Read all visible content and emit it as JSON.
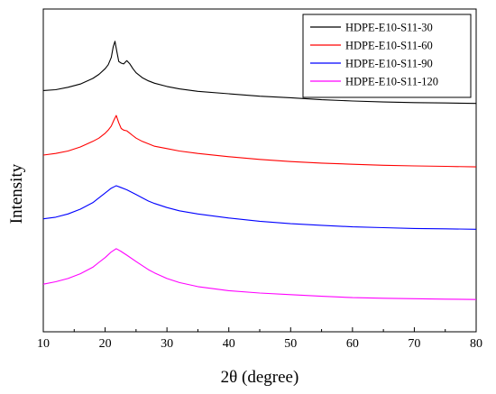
{
  "chart_data": {
    "type": "line",
    "title": "",
    "xlabel": "2θ (degree)",
    "ylabel": "Intensity",
    "xlim": [
      10,
      80
    ],
    "xticks": [
      10,
      20,
      30,
      40,
      50,
      60,
      70,
      80
    ],
    "y_tick_labels_shown": false,
    "y_units": "arbitrary, curves vertically offset",
    "grid": false,
    "legend_position": "top-right",
    "series": [
      {
        "name": "HDPE-E10-S11-30",
        "color": "#000000",
        "x": [
          10,
          12,
          14,
          16,
          18,
          19,
          20,
          20.5,
          21,
          21.3,
          21.6,
          21.9,
          22.2,
          22.6,
          23,
          23.5,
          24,
          24.5,
          25,
          26,
          27,
          28,
          30,
          32,
          35,
          40,
          45,
          50,
          55,
          60,
          65,
          70,
          75,
          80
        ],
        "y": [
          7.95,
          8.0,
          8.15,
          8.35,
          8.7,
          8.95,
          9.3,
          9.55,
          10.0,
          10.65,
          11.0,
          10.35,
          9.75,
          9.65,
          9.6,
          9.8,
          9.6,
          9.3,
          9.05,
          8.75,
          8.55,
          8.4,
          8.2,
          8.05,
          7.9,
          7.75,
          7.6,
          7.5,
          7.38,
          7.3,
          7.24,
          7.2,
          7.18,
          7.15
        ]
      },
      {
        "name": "HDPE-E10-S11-60",
        "color": "#ff0000",
        "x": [
          10,
          12,
          14,
          16,
          18,
          19,
          20,
          20.5,
          21,
          21.4,
          21.8,
          22.2,
          22.6,
          23,
          23.5,
          24,
          24.5,
          25,
          26,
          27,
          28,
          30,
          32,
          35,
          40,
          45,
          50,
          55,
          60,
          65,
          70,
          75,
          80
        ],
        "y": [
          3.95,
          4.05,
          4.2,
          4.45,
          4.8,
          5.0,
          5.3,
          5.5,
          5.75,
          6.1,
          6.4,
          5.95,
          5.6,
          5.5,
          5.45,
          5.3,
          5.15,
          5.0,
          4.8,
          4.65,
          4.5,
          4.35,
          4.2,
          4.05,
          3.85,
          3.68,
          3.55,
          3.45,
          3.38,
          3.32,
          3.28,
          3.25,
          3.22
        ]
      },
      {
        "name": "HDPE-E10-S11-90",
        "color": "#0000ff",
        "x": [
          10,
          12,
          14,
          16,
          18,
          19,
          20,
          21,
          21.8,
          22.5,
          23.5,
          25,
          26,
          27,
          28,
          30,
          32,
          35,
          40,
          45,
          50,
          55,
          60,
          65,
          70,
          75,
          80
        ],
        "y": [
          0.0,
          0.1,
          0.3,
          0.6,
          1.0,
          1.3,
          1.6,
          1.9,
          2.05,
          1.95,
          1.8,
          1.5,
          1.3,
          1.1,
          0.95,
          0.7,
          0.5,
          0.3,
          0.05,
          -0.15,
          -0.3,
          -0.4,
          -0.5,
          -0.55,
          -0.6,
          -0.62,
          -0.65
        ]
      },
      {
        "name": "HDPE-E10-S11-120",
        "color": "#ff00ff",
        "x": [
          10,
          12,
          14,
          16,
          18,
          19,
          20,
          21,
          21.8,
          22.5,
          23.5,
          25,
          26,
          27,
          28,
          30,
          32,
          35,
          40,
          45,
          50,
          55,
          60,
          65,
          70,
          75,
          80
        ],
        "y": [
          -4.05,
          -3.9,
          -3.7,
          -3.4,
          -3.0,
          -2.7,
          -2.4,
          -2.05,
          -1.85,
          -2.0,
          -2.25,
          -2.65,
          -2.9,
          -3.15,
          -3.35,
          -3.7,
          -3.95,
          -4.2,
          -4.45,
          -4.6,
          -4.7,
          -4.8,
          -4.88,
          -4.92,
          -4.95,
          -4.98,
          -5.0
        ]
      }
    ]
  }
}
